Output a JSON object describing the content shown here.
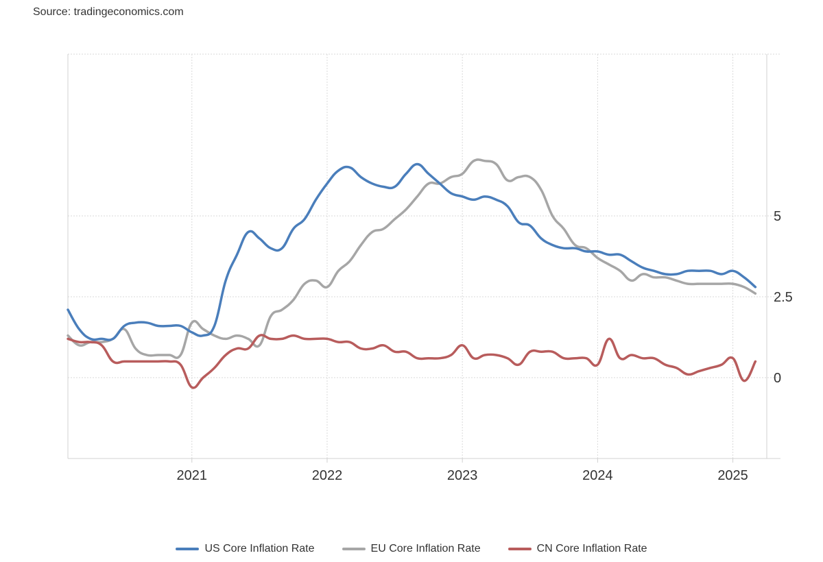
{
  "source": "Source: tradingeconomics.com",
  "chart_data": {
    "type": "line",
    "title": "",
    "xlabel": "",
    "ylabel": "",
    "x_ticks": [
      "2021",
      "2022",
      "2023",
      "2024",
      "2025"
    ],
    "y_ticks": [
      {
        "value": 5,
        "label": "5"
      },
      {
        "value": 2.5,
        "label": "2.5"
      },
      {
        "value": 0,
        "label": "0"
      }
    ],
    "xlim": [
      "2020-02",
      "2025-02"
    ],
    "ylim": [
      -2.5,
      10
    ],
    "grid": true,
    "legend": "bottom",
    "series": [
      {
        "name": "US Core Inflation Rate",
        "color": "#4a7ebb",
        "points": [
          [
            "2020-02",
            2.1
          ],
          [
            "2020-03",
            1.5
          ],
          [
            "2020-04",
            1.2
          ],
          [
            "2020-05",
            1.2
          ],
          [
            "2020-06",
            1.2
          ],
          [
            "2020-07",
            1.6
          ],
          [
            "2020-08",
            1.7
          ],
          [
            "2020-09",
            1.7
          ],
          [
            "2020-10",
            1.6
          ],
          [
            "2020-11",
            1.6
          ],
          [
            "2020-12",
            1.6
          ],
          [
            "2021-01",
            1.4
          ],
          [
            "2021-02",
            1.3
          ],
          [
            "2021-03",
            1.6
          ],
          [
            "2021-04",
            3.0
          ],
          [
            "2021-05",
            3.8
          ],
          [
            "2021-06",
            4.5
          ],
          [
            "2021-07",
            4.3
          ],
          [
            "2021-08",
            4.0
          ],
          [
            "2021-09",
            4.0
          ],
          [
            "2021-10",
            4.6
          ],
          [
            "2021-11",
            4.9
          ],
          [
            "2021-12",
            5.5
          ],
          [
            "2022-01",
            6.0
          ],
          [
            "2022-02",
            6.4
          ],
          [
            "2022-03",
            6.5
          ],
          [
            "2022-04",
            6.2
          ],
          [
            "2022-05",
            6.0
          ],
          [
            "2022-06",
            5.9
          ],
          [
            "2022-07",
            5.9
          ],
          [
            "2022-08",
            6.3
          ],
          [
            "2022-09",
            6.6
          ],
          [
            "2022-10",
            6.3
          ],
          [
            "2022-11",
            6.0
          ],
          [
            "2022-12",
            5.7
          ],
          [
            "2023-01",
            5.6
          ],
          [
            "2023-02",
            5.5
          ],
          [
            "2023-03",
            5.6
          ],
          [
            "2023-04",
            5.5
          ],
          [
            "2023-05",
            5.3
          ],
          [
            "2023-06",
            4.8
          ],
          [
            "2023-07",
            4.7
          ],
          [
            "2023-08",
            4.3
          ],
          [
            "2023-09",
            4.1
          ],
          [
            "2023-10",
            4.0
          ],
          [
            "2023-11",
            4.0
          ],
          [
            "2023-12",
            3.9
          ],
          [
            "2024-01",
            3.9
          ],
          [
            "2024-02",
            3.8
          ],
          [
            "2024-03",
            3.8
          ],
          [
            "2024-04",
            3.6
          ],
          [
            "2024-05",
            3.4
          ],
          [
            "2024-06",
            3.3
          ],
          [
            "2024-07",
            3.2
          ],
          [
            "2024-08",
            3.2
          ],
          [
            "2024-09",
            3.3
          ],
          [
            "2024-10",
            3.3
          ],
          [
            "2024-11",
            3.3
          ],
          [
            "2024-12",
            3.2
          ],
          [
            "2025-01",
            3.3
          ],
          [
            "2025-02",
            3.1
          ],
          [
            "2025-03",
            2.8
          ]
        ]
      },
      {
        "name": "EU Core Inflation Rate",
        "color": "#a6a6a6",
        "points": [
          [
            "2020-02",
            1.3
          ],
          [
            "2020-03",
            1.0
          ],
          [
            "2020-04",
            1.1
          ],
          [
            "2020-05",
            1.1
          ],
          [
            "2020-06",
            1.2
          ],
          [
            "2020-07",
            1.5
          ],
          [
            "2020-08",
            0.9
          ],
          [
            "2020-09",
            0.7
          ],
          [
            "2020-10",
            0.7
          ],
          [
            "2020-11",
            0.7
          ],
          [
            "2020-12",
            0.7
          ],
          [
            "2021-01",
            1.7
          ],
          [
            "2021-02",
            1.5
          ],
          [
            "2021-03",
            1.3
          ],
          [
            "2021-04",
            1.2
          ],
          [
            "2021-05",
            1.3
          ],
          [
            "2021-06",
            1.2
          ],
          [
            "2021-07",
            1.0
          ],
          [
            "2021-08",
            1.9
          ],
          [
            "2021-09",
            2.1
          ],
          [
            "2021-10",
            2.4
          ],
          [
            "2021-11",
            2.9
          ],
          [
            "2021-12",
            3.0
          ],
          [
            "2022-01",
            2.8
          ],
          [
            "2022-02",
            3.3
          ],
          [
            "2022-03",
            3.6
          ],
          [
            "2022-04",
            4.1
          ],
          [
            "2022-05",
            4.5
          ],
          [
            "2022-06",
            4.6
          ],
          [
            "2022-07",
            4.9
          ],
          [
            "2022-08",
            5.2
          ],
          [
            "2022-09",
            5.6
          ],
          [
            "2022-10",
            6.0
          ],
          [
            "2022-11",
            6.0
          ],
          [
            "2022-12",
            6.2
          ],
          [
            "2023-01",
            6.3
          ],
          [
            "2023-02",
            6.7
          ],
          [
            "2023-03",
            6.7
          ],
          [
            "2023-04",
            6.6
          ],
          [
            "2023-05",
            6.1
          ],
          [
            "2023-06",
            6.2
          ],
          [
            "2023-07",
            6.2
          ],
          [
            "2023-08",
            5.8
          ],
          [
            "2023-09",
            5.0
          ],
          [
            "2023-10",
            4.6
          ],
          [
            "2023-11",
            4.1
          ],
          [
            "2023-12",
            4.0
          ],
          [
            "2024-01",
            3.7
          ],
          [
            "2024-02",
            3.5
          ],
          [
            "2024-03",
            3.3
          ],
          [
            "2024-04",
            3.0
          ],
          [
            "2024-05",
            3.2
          ],
          [
            "2024-06",
            3.1
          ],
          [
            "2024-07",
            3.1
          ],
          [
            "2024-08",
            3.0
          ],
          [
            "2024-09",
            2.9
          ],
          [
            "2024-10",
            2.9
          ],
          [
            "2024-11",
            2.9
          ],
          [
            "2024-12",
            2.9
          ],
          [
            "2025-01",
            2.9
          ],
          [
            "2025-02",
            2.8
          ],
          [
            "2025-03",
            2.6
          ]
        ]
      },
      {
        "name": "CN Core Inflation Rate",
        "color": "#b85c5c",
        "points": [
          [
            "2020-02",
            1.2
          ],
          [
            "2020-03",
            1.1
          ],
          [
            "2020-04",
            1.1
          ],
          [
            "2020-05",
            1.0
          ],
          [
            "2020-06",
            0.5
          ],
          [
            "2020-07",
            0.5
          ],
          [
            "2020-08",
            0.5
          ],
          [
            "2020-09",
            0.5
          ],
          [
            "2020-10",
            0.5
          ],
          [
            "2020-11",
            0.5
          ],
          [
            "2020-12",
            0.4
          ],
          [
            "2021-01",
            -0.3
          ],
          [
            "2021-02",
            0.0
          ],
          [
            "2021-03",
            0.3
          ],
          [
            "2021-04",
            0.7
          ],
          [
            "2021-05",
            0.9
          ],
          [
            "2021-06",
            0.9
          ],
          [
            "2021-07",
            1.3
          ],
          [
            "2021-08",
            1.2
          ],
          [
            "2021-09",
            1.2
          ],
          [
            "2021-10",
            1.3
          ],
          [
            "2021-11",
            1.2
          ],
          [
            "2021-12",
            1.2
          ],
          [
            "2022-01",
            1.2
          ],
          [
            "2022-02",
            1.1
          ],
          [
            "2022-03",
            1.1
          ],
          [
            "2022-04",
            0.9
          ],
          [
            "2022-05",
            0.9
          ],
          [
            "2022-06",
            1.0
          ],
          [
            "2022-07",
            0.8
          ],
          [
            "2022-08",
            0.8
          ],
          [
            "2022-09",
            0.6
          ],
          [
            "2022-10",
            0.6
          ],
          [
            "2022-11",
            0.6
          ],
          [
            "2022-12",
            0.7
          ],
          [
            "2023-01",
            1.0
          ],
          [
            "2023-02",
            0.6
          ],
          [
            "2023-03",
            0.7
          ],
          [
            "2023-04",
            0.7
          ],
          [
            "2023-05",
            0.6
          ],
          [
            "2023-06",
            0.4
          ],
          [
            "2023-07",
            0.8
          ],
          [
            "2023-08",
            0.8
          ],
          [
            "2023-09",
            0.8
          ],
          [
            "2023-10",
            0.6
          ],
          [
            "2023-11",
            0.6
          ],
          [
            "2023-12",
            0.6
          ],
          [
            "2024-01",
            0.4
          ],
          [
            "2024-02",
            1.2
          ],
          [
            "2024-03",
            0.6
          ],
          [
            "2024-04",
            0.7
          ],
          [
            "2024-05",
            0.6
          ],
          [
            "2024-06",
            0.6
          ],
          [
            "2024-07",
            0.4
          ],
          [
            "2024-08",
            0.3
          ],
          [
            "2024-09",
            0.1
          ],
          [
            "2024-10",
            0.2
          ],
          [
            "2024-11",
            0.3
          ],
          [
            "2024-12",
            0.4
          ],
          [
            "2025-01",
            0.6
          ],
          [
            "2025-02",
            -0.1
          ],
          [
            "2025-03",
            0.5
          ]
        ]
      }
    ]
  }
}
